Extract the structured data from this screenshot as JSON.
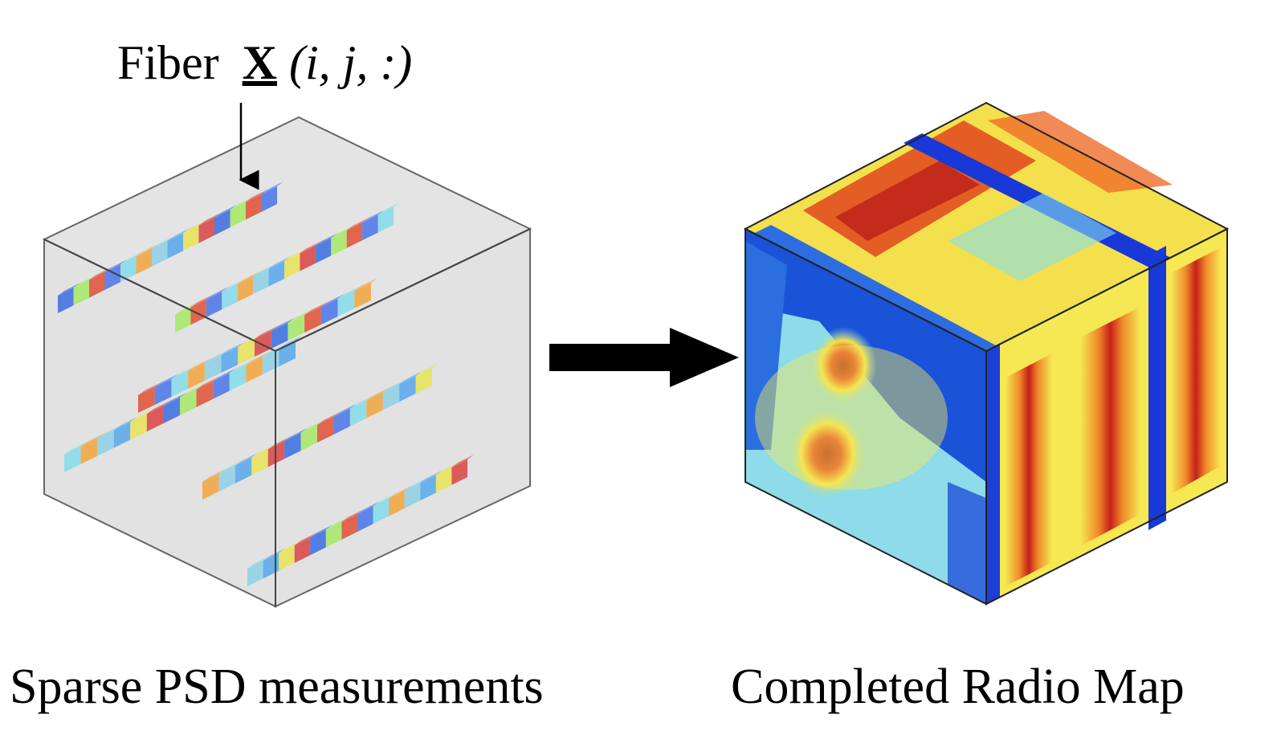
{
  "fiber_label": {
    "word": "Fiber",
    "tensor": "X",
    "index": "(i, j, :)"
  },
  "left_caption": "Sparse PSD measurements",
  "right_caption": "Completed Radio Map",
  "icons": {
    "transition_arrow": "right-arrow-icon"
  },
  "colors": {
    "cube_fill": "#e2e2e2",
    "cube_edge": "#555555",
    "arrow": "#000000"
  },
  "colormap": "jet"
}
